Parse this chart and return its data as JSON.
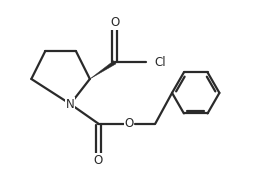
{
  "background_color": "#ffffff",
  "line_color": "#2a2a2a",
  "line_width": 1.6,
  "figsize": [
    2.8,
    1.83
  ],
  "dpi": 100,
  "xlim": [
    0,
    10
  ],
  "ylim": [
    0,
    6.5
  ]
}
